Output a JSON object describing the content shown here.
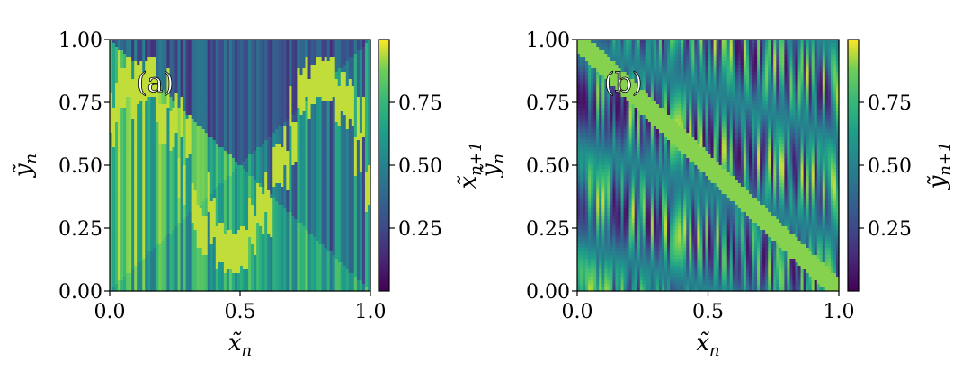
{
  "chart_data": [
    {
      "type": "heatmap",
      "panel_label": "(a)",
      "xlabel_base": "x̃",
      "xlabel_sub": "n",
      "ylabel_base": "ỹ",
      "ylabel_sub": "n",
      "colorbar_label_base": "x̃",
      "colorbar_label_sub": "n+1",
      "xlim": [
        0.0,
        1.0
      ],
      "ylim": [
        0.0,
        1.0
      ],
      "x_ticks": [
        "0.0",
        "0.5",
        "1.0"
      ],
      "x_tick_values": [
        0.0,
        0.5,
        1.0
      ],
      "y_ticks": [
        "0.00",
        "0.25",
        "0.50",
        "0.75",
        "1.00"
      ],
      "y_tick_values": [
        0.0,
        0.25,
        0.5,
        0.75,
        1.0
      ],
      "colorbar_ticks": [
        "0.25",
        "0.50",
        "0.75"
      ],
      "colorbar_tick_values": [
        0.25,
        0.5,
        0.75
      ],
      "colorbar_range": [
        0.0,
        1.0
      ],
      "colormap": "viridis"
    },
    {
      "type": "heatmap",
      "panel_label": "(b)",
      "xlabel_base": "x̃",
      "xlabel_sub": "n",
      "ylabel_base": "ỹ",
      "ylabel_sub": "n",
      "colorbar_label_base": "ỹ",
      "colorbar_label_sub": "n+1",
      "xlim": [
        0.0,
        1.0
      ],
      "ylim": [
        0.0,
        1.0
      ],
      "x_ticks": [
        "0.0",
        "0.5",
        "1.0"
      ],
      "x_tick_values": [
        0.0,
        0.5,
        1.0
      ],
      "y_ticks": [
        "0.00",
        "0.25",
        "0.50",
        "0.75",
        "1.00"
      ],
      "y_tick_values": [
        0.0,
        0.25,
        0.5,
        0.75,
        1.0
      ],
      "colorbar_ticks": [
        "0.25",
        "0.50",
        "0.75"
      ],
      "colorbar_tick_values": [
        0.25,
        0.5,
        0.75
      ],
      "colorbar_range": [
        0.0,
        1.0
      ],
      "colormap": "viridis"
    }
  ]
}
